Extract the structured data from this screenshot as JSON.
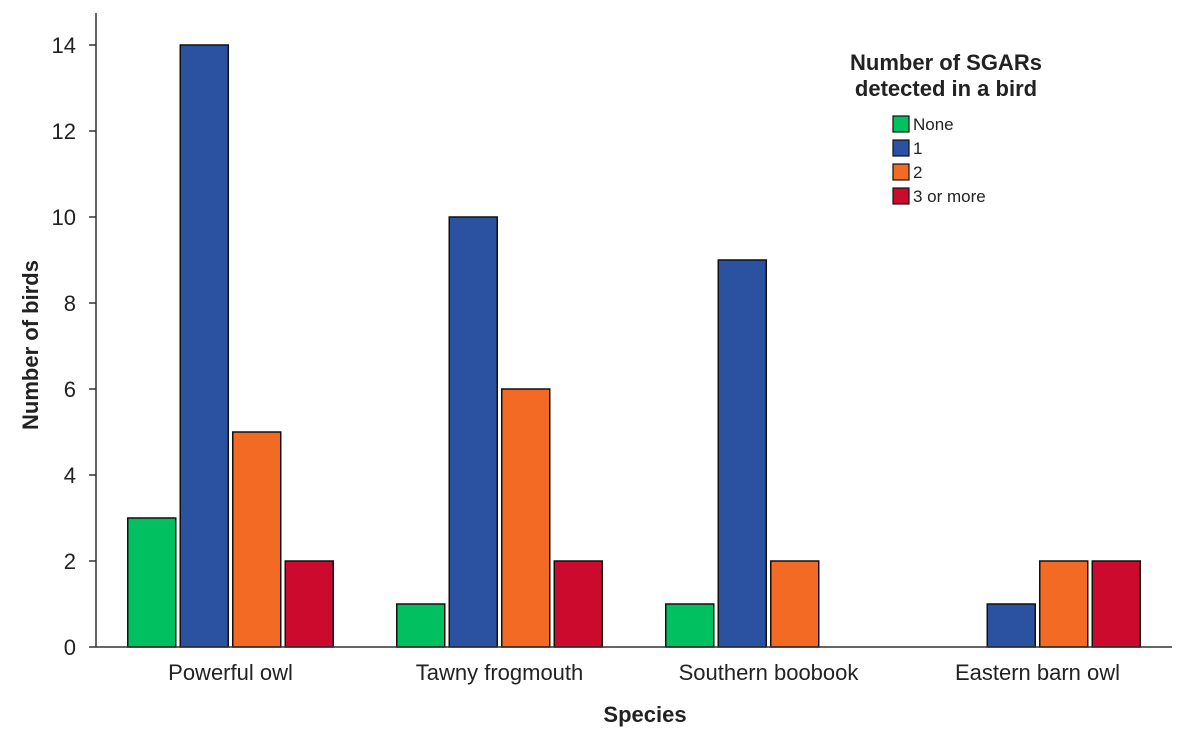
{
  "chart_data": {
    "type": "bar",
    "title": "",
    "xlabel": "Species",
    "ylabel": "Number of birds",
    "categories": [
      "Powerful owl",
      "Tawny frogmouth",
      "Southern boobook",
      "Eastern barn owl"
    ],
    "series": [
      {
        "name": "None",
        "color": "#00c060",
        "values": [
          3,
          1,
          1,
          0
        ]
      },
      {
        "name": "1",
        "color": "#2b52a0",
        "values": [
          14,
          10,
          9,
          1
        ]
      },
      {
        "name": "2",
        "color": "#f26a24",
        "values": [
          5,
          6,
          2,
          2
        ]
      },
      {
        "name": "3 or more",
        "color": "#cc0a2e",
        "values": [
          2,
          2,
          0,
          2
        ]
      }
    ],
    "ylim": [
      0,
      14
    ],
    "yticks": [
      0,
      2,
      4,
      6,
      8,
      10,
      12,
      14
    ],
    "legend": {
      "title_line1": "Number of SGARs",
      "title_line2": "detected in a bird",
      "position": "top-right"
    },
    "grid": false
  }
}
